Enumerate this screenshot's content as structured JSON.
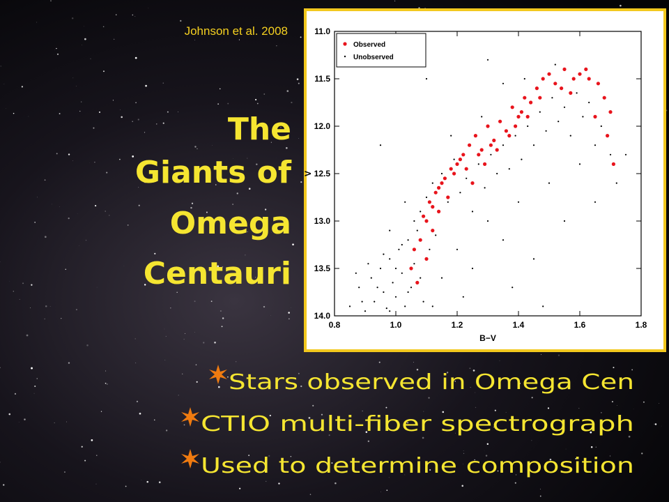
{
  "slide": {
    "title_lines": [
      "The",
      "Giants of",
      "Omega",
      "Centauri"
    ],
    "citation": "Johnson et al. 2008",
    "bullets": [
      "Stars observed in Omega Cen",
      "CTIO multi-fiber spectrograph",
      "Used to determine composition"
    ]
  },
  "chart_data": {
    "type": "scatter",
    "x_label": "B−V",
    "y_label": "V",
    "xlim": [
      0.8,
      1.8
    ],
    "ylim": [
      11,
      14
    ],
    "y_inverted": true,
    "xticks": [
      {
        "value": 0.8,
        "label": "0.8"
      },
      {
        "value": 1,
        "label": "1.0"
      },
      {
        "value": 1.2,
        "label": "1.2"
      },
      {
        "value": 1.4,
        "label": "1.4"
      },
      {
        "value": 1.6,
        "label": "1.6"
      },
      {
        "value": 1.8,
        "label": "1.8"
      }
    ],
    "yticks": [
      {
        "value": 11,
        "label": "11.0"
      },
      11.5,
      {
        "value": 12,
        "label": "12.0"
      },
      12.5,
      {
        "value": 13,
        "label": "13.0"
      },
      13.5,
      {
        "value": 14,
        "label": "14.0"
      }
    ],
    "legend": "upper left",
    "series": [
      {
        "name": "Observed",
        "color": "#e8141c",
        "x": [
          1.07,
          1.1,
          1.08,
          1.12,
          1.05,
          1.09,
          1.11,
          1.14,
          1.06,
          1.13,
          1.1,
          1.15,
          1.12,
          1.18,
          1.16,
          1.2,
          1.14,
          1.22,
          1.19,
          1.17,
          1.24,
          1.21,
          1.26,
          1.23,
          1.28,
          1.25,
          1.3,
          1.27,
          1.32,
          1.29,
          1.34,
          1.31,
          1.36,
          1.38,
          1.33,
          1.4,
          1.37,
          1.42,
          1.39,
          1.44,
          1.41,
          1.46,
          1.43,
          1.48,
          1.5,
          1.47,
          1.52,
          1.55,
          1.58,
          1.54,
          1.6,
          1.63,
          1.57,
          1.66,
          1.62,
          1.68,
          1.65,
          1.7,
          1.69,
          1.71
        ],
        "values": [
          13.65,
          13.4,
          13.2,
          13.1,
          13.5,
          12.95,
          12.8,
          12.9,
          13.3,
          12.7,
          13.0,
          12.6,
          12.85,
          12.45,
          12.55,
          12.4,
          12.65,
          12.3,
          12.5,
          12.75,
          12.2,
          12.35,
          12.1,
          12.45,
          12.25,
          12.6,
          12.0,
          12.3,
          12.15,
          12.4,
          11.95,
          12.2,
          12.05,
          11.8,
          12.25,
          11.9,
          12.1,
          11.7,
          12.0,
          11.75,
          11.85,
          11.6,
          11.9,
          11.5,
          11.45,
          11.7,
          11.55,
          11.4,
          11.5,
          11.6,
          11.45,
          11.5,
          11.65,
          11.55,
          11.4,
          11.7,
          11.9,
          11.85,
          12.1,
          12.4
        ]
      },
      {
        "name": "Unobserved",
        "color": "#000000",
        "x": [
          0.85,
          0.88,
          0.9,
          0.92,
          0.93,
          0.95,
          0.96,
          0.97,
          0.98,
          0.99,
          1.0,
          1.01,
          1.02,
          1.03,
          1.04,
          1.05,
          1.06,
          1.07,
          1.08,
          1.09,
          0.87,
          0.89,
          0.91,
          0.94,
          0.96,
          0.98,
          1.0,
          1.02,
          1.04,
          1.06,
          1.08,
          1.1,
          1.12,
          1.11,
          1.13,
          1.15,
          1.17,
          1.19,
          1.21,
          1.23,
          1.25,
          1.27,
          1.29,
          1.31,
          1.33,
          1.35,
          1.37,
          1.39,
          1.41,
          1.43,
          1.45,
          1.47,
          1.49,
          1.51,
          1.53,
          1.55,
          1.57,
          1.59,
          1.61,
          1.63,
          1.65,
          1.67,
          1.7,
          1.72,
          1.6,
          1.5,
          1.4,
          1.3,
          1.2,
          1.15,
          1.25,
          1.35,
          1.45,
          1.55,
          1.65,
          1.75,
          1.1,
          1.3,
          0.95,
          1.38,
          1.48,
          1.22,
          1.12,
          1.03,
          0.98,
          1.28,
          1.18,
          1.42,
          1.52,
          1.35
        ],
        "values": [
          13.9,
          13.7,
          13.95,
          13.6,
          13.85,
          13.5,
          13.75,
          13.92,
          13.4,
          13.65,
          13.8,
          13.3,
          13.55,
          13.9,
          13.2,
          13.7,
          13.45,
          13.1,
          13.6,
          13.85,
          13.55,
          13.85,
          13.45,
          13.7,
          13.35,
          13.95,
          13.5,
          13.25,
          13.75,
          13.0,
          12.9,
          12.75,
          12.6,
          13.3,
          13.15,
          12.5,
          12.8,
          12.35,
          12.7,
          12.55,
          12.9,
          12.4,
          12.65,
          12.3,
          12.5,
          12.2,
          12.45,
          12.1,
          12.35,
          12.0,
          12.2,
          11.85,
          12.05,
          11.7,
          11.95,
          11.8,
          12.1,
          11.65,
          11.9,
          11.75,
          12.2,
          12.0,
          12.3,
          12.6,
          12.4,
          12.6,
          12.8,
          13.0,
          13.3,
          13.6,
          13.5,
          13.2,
          13.4,
          13.0,
          12.8,
          12.3,
          11.5,
          11.3,
          12.2,
          13.7,
          13.9,
          13.8,
          13.9,
          12.8,
          13.1,
          11.9,
          12.1,
          11.5,
          11.35,
          11.55
        ]
      }
    ]
  }
}
